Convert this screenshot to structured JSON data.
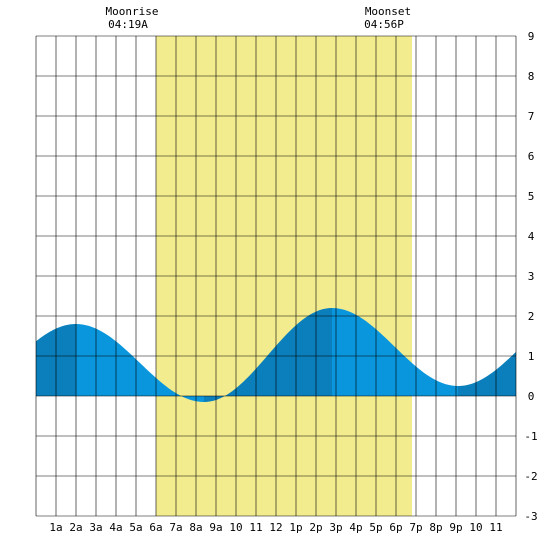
{
  "chart_data": {
    "type": "area",
    "title": "",
    "xlabel": "",
    "ylabel": "",
    "xlim": [
      0,
      24
    ],
    "ylim": [
      -3,
      9
    ],
    "grid": true,
    "x_tick_labels": [
      "1a",
      "2a",
      "3a",
      "4a",
      "5a",
      "6a",
      "7a",
      "8a",
      "9a",
      "10",
      "11",
      "12",
      "1p",
      "2p",
      "3p",
      "4p",
      "5p",
      "6p",
      "7p",
      "8p",
      "9p",
      "10",
      "11"
    ],
    "y_tick_labels": [
      "-3",
      "-2",
      "-1",
      "0",
      "1",
      "2",
      "3",
      "4",
      "5",
      "6",
      "7",
      "8",
      "9"
    ],
    "daylight": {
      "start_hour": 6.0,
      "end_hour": 18.8
    },
    "moon": {
      "moonrise": {
        "label": "Moonrise",
        "time": "04:19A",
        "hour": 5.3
      },
      "moonset": {
        "label": "Moonset",
        "time": "04:56P",
        "hour": 17.6
      }
    },
    "tide_extremes": [
      {
        "hour": 2.0,
        "height": 1.8,
        "kind": "high"
      },
      {
        "hour": 8.4,
        "height": -0.15,
        "kind": "low"
      },
      {
        "hour": 14.8,
        "height": 2.2,
        "kind": "high"
      },
      {
        "hour": 21.1,
        "height": 0.25,
        "kind": "low"
      }
    ],
    "series": [
      {
        "values": [
          [
            0.0,
            1.42
          ],
          [
            1.0,
            1.7
          ],
          [
            2.0,
            1.8
          ],
          [
            3.0,
            1.67
          ],
          [
            4.0,
            1.33
          ],
          [
            5.0,
            0.86
          ],
          [
            6.0,
            0.43
          ],
          [
            7.0,
            0.08
          ],
          [
            8.0,
            -0.12
          ],
          [
            8.4,
            -0.15
          ],
          [
            9.0,
            -0.1
          ],
          [
            10.0,
            0.22
          ],
          [
            11.0,
            0.71
          ],
          [
            12.0,
            1.25
          ],
          [
            13.0,
            1.75
          ],
          [
            14.0,
            2.09
          ],
          [
            14.8,
            2.2
          ],
          [
            16.0,
            1.94
          ],
          [
            17.0,
            1.42
          ],
          [
            18.0,
            0.83
          ],
          [
            19.0,
            0.49
          ],
          [
            20.0,
            0.31
          ],
          [
            21.1,
            0.25
          ],
          [
            22.0,
            0.33
          ],
          [
            23.0,
            0.59
          ],
          [
            24.0,
            0.95
          ]
        ]
      }
    ],
    "colors": {
      "daylight": "#f2ec8e",
      "tide_light": "#0a96dc",
      "tide_dark": "#0a7fbb",
      "grid": "#000000",
      "background": "#ffffff"
    }
  }
}
